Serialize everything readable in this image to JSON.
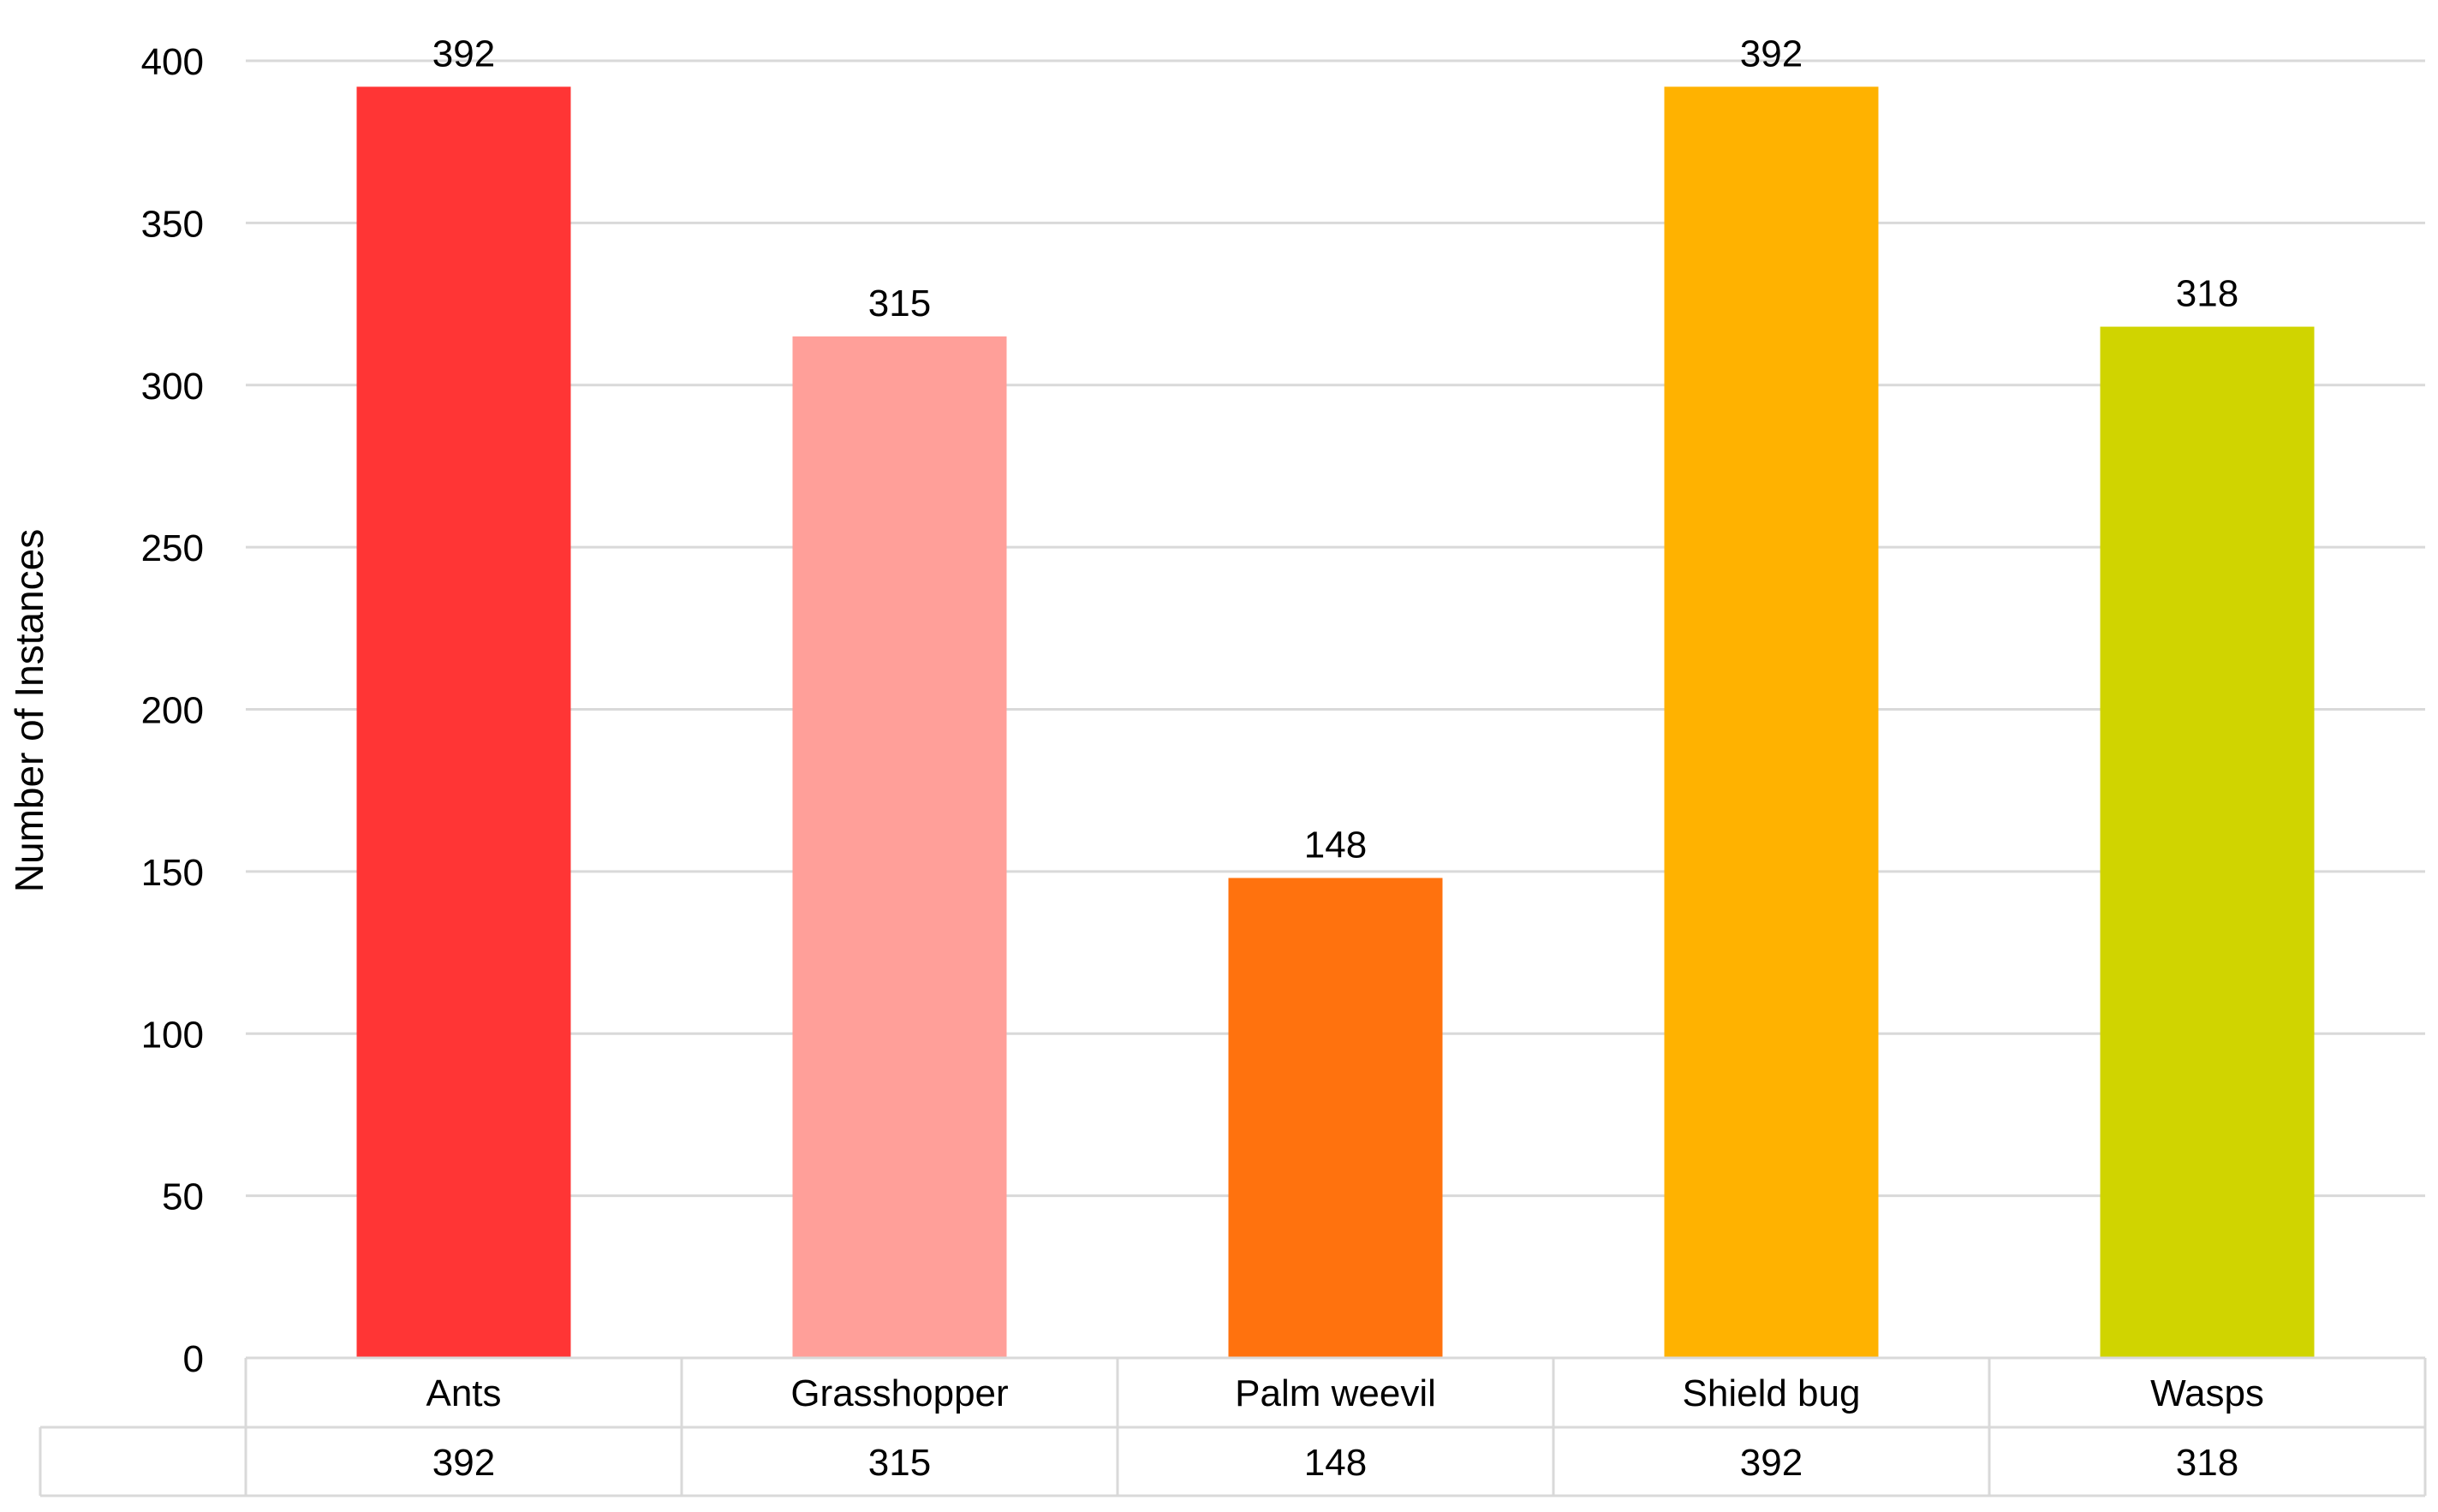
{
  "chart_data": {
    "type": "bar",
    "categories": [
      "Ants",
      "Grasshopper",
      "Palm weevil",
      "Shield bug",
      "Wasps"
    ],
    "values": [
      392,
      315,
      148,
      392,
      318
    ],
    "colors": [
      "#ff3535",
      "#ff9f99",
      "#ff720e",
      "#ffb200",
      "#d0d400"
    ],
    "title": "",
    "xlabel": "",
    "ylabel": "Number of Instances",
    "ylim": [
      0,
      400
    ],
    "yticks": [
      0,
      50,
      100,
      150,
      200,
      250,
      300,
      350,
      400
    ],
    "grid": true,
    "legend": "none",
    "data_labels": true,
    "data_table": {
      "row": [
        "392",
        "315",
        "148",
        "392",
        "318"
      ]
    }
  }
}
